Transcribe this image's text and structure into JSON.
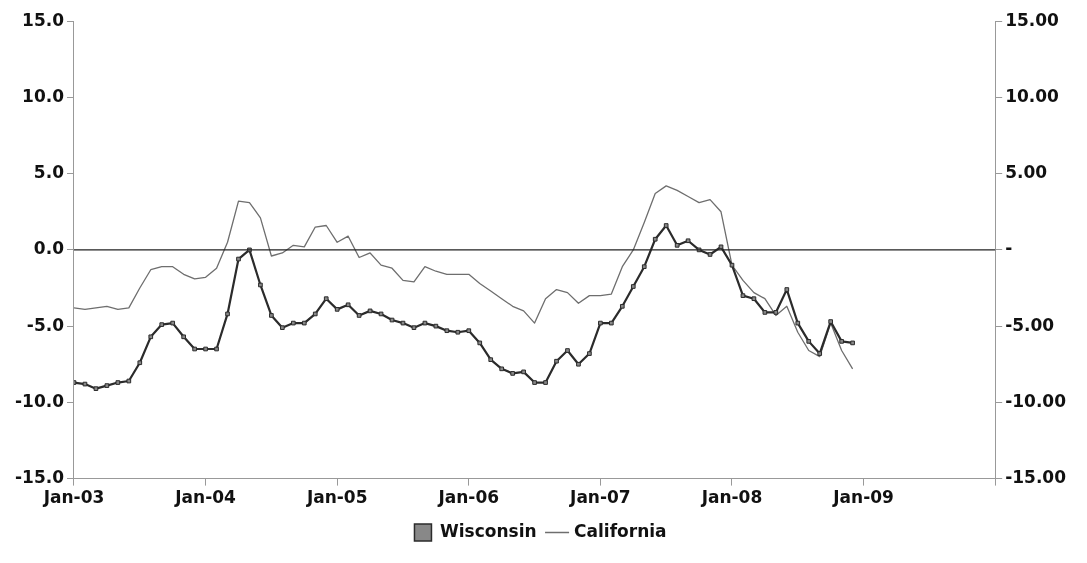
{
  "chart_data": {
    "type": "line",
    "x": [
      "2003-01",
      "2003-02",
      "2003-03",
      "2003-04",
      "2003-05",
      "2003-06",
      "2003-07",
      "2003-08",
      "2003-09",
      "2003-10",
      "2003-11",
      "2003-12",
      "2004-01",
      "2004-02",
      "2004-03",
      "2004-04",
      "2004-05",
      "2004-06",
      "2004-07",
      "2004-08",
      "2004-09",
      "2004-10",
      "2004-11",
      "2004-12",
      "2005-01",
      "2005-02",
      "2005-03",
      "2005-04",
      "2005-05",
      "2005-06",
      "2005-07",
      "2005-08",
      "2005-09",
      "2005-10",
      "2005-11",
      "2005-12",
      "2006-01",
      "2006-02",
      "2006-03",
      "2006-04",
      "2006-05",
      "2006-06",
      "2006-07",
      "2006-08",
      "2006-09",
      "2006-10",
      "2006-11",
      "2006-12",
      "2007-01",
      "2007-02",
      "2007-03",
      "2007-04",
      "2007-05",
      "2007-06",
      "2007-07",
      "2007-08",
      "2007-09",
      "2007-10",
      "2007-11",
      "2007-12",
      "2008-01",
      "2008-02",
      "2008-03",
      "2008-04",
      "2008-05",
      "2008-06",
      "2008-07",
      "2008-08",
      "2008-09",
      "2008-10",
      "2008-11",
      "2008-12"
    ],
    "series": [
      {
        "name": "Wisconsin",
        "color": "#2b2b2b",
        "marker": "square",
        "values": [
          -8.7,
          -8.8,
          -9.1,
          -8.9,
          -8.7,
          -8.6,
          -7.4,
          -5.7,
          -4.9,
          -4.8,
          -5.7,
          -6.5,
          -6.5,
          -6.5,
          -4.2,
          -0.6,
          0.0,
          -2.3,
          -4.3,
          -5.1,
          -4.8,
          -4.8,
          -4.2,
          -3.2,
          -3.9,
          -3.6,
          -4.3,
          -4.0,
          -4.2,
          -4.6,
          -4.8,
          -5.1,
          -4.8,
          -5.0,
          -5.3,
          -5.4,
          -5.3,
          -6.1,
          -7.2,
          -7.8,
          -8.1,
          -8.0,
          -8.7,
          -8.7,
          -7.3,
          -6.6,
          -7.5,
          -6.8,
          -4.8,
          -4.8,
          -3.7,
          -2.4,
          -1.1,
          0.7,
          1.6,
          0.3,
          0.6,
          0.0,
          -0.3,
          0.2,
          -1.0,
          -3.0,
          -3.2,
          -4.1,
          -4.1,
          -2.6,
          -4.8,
          -6.0,
          -6.8,
          -4.7,
          -6.0,
          -6.1
        ]
      },
      {
        "name": "California",
        "color": "#6e6e6e",
        "marker": "none",
        "values": [
          -3.8,
          -3.9,
          -3.8,
          -3.7,
          -3.9,
          -3.8,
          -2.5,
          -1.3,
          -1.1,
          -1.1,
          -1.6,
          -1.9,
          -1.8,
          -1.2,
          0.5,
          3.2,
          3.1,
          2.1,
          -0.4,
          -0.2,
          0.3,
          0.2,
          1.5,
          1.6,
          0.5,
          0.9,
          -0.5,
          -0.2,
          -1.0,
          -1.2,
          -2.0,
          -2.1,
          -1.1,
          -1.4,
          -1.6,
          -1.6,
          -1.6,
          -2.2,
          -2.7,
          -3.2,
          -3.7,
          -4.0,
          -4.8,
          -3.2,
          -2.6,
          -2.8,
          -3.5,
          -3.0,
          -3.0,
          -2.9,
          -1.1,
          0.0,
          1.8,
          3.7,
          4.2,
          3.9,
          3.5,
          3.1,
          3.3,
          2.5,
          -1.0,
          -2.0,
          -2.8,
          -3.2,
          -4.3,
          -3.7,
          -5.4,
          -6.6,
          -7.0,
          -4.8,
          -6.6,
          -7.8
        ]
      }
    ],
    "xlim": [
      "2003-01",
      "2010-01"
    ],
    "xticks": [
      {
        "value": "2003-01",
        "label": "Jan-03"
      },
      {
        "value": "2004-01",
        "label": "Jan-04"
      },
      {
        "value": "2005-01",
        "label": "Jan-05"
      },
      {
        "value": "2006-01",
        "label": "Jan-06"
      },
      {
        "value": "2007-01",
        "label": "Jan-07"
      },
      {
        "value": "2008-01",
        "label": "Jan-08"
      },
      {
        "value": "2009-01",
        "label": "Jan-09"
      },
      {
        "value": "2010-01",
        "label": null
      }
    ],
    "ylim": [
      -15,
      15
    ],
    "yticks": [
      {
        "value": -15,
        "label": "-15.0"
      },
      {
        "value": -10,
        "label": "-10.0"
      },
      {
        "value": -5,
        "label": "-5.0"
      },
      {
        "value": 0,
        "label": "0.0"
      },
      {
        "value": 5,
        "label": "5.0"
      },
      {
        "value": 10,
        "label": "10.0"
      },
      {
        "value": 15,
        "label": "15.0"
      }
    ],
    "y2lim": [
      -15,
      15
    ],
    "y2ticks": [
      {
        "value": -15,
        "label": "-15.00"
      },
      {
        "value": -10,
        "label": "-10.00"
      },
      {
        "value": -5,
        "label": "-5.00"
      },
      {
        "value": 0,
        "label": "-"
      },
      {
        "value": 5,
        "label": "5.00"
      },
      {
        "value": 10,
        "label": "10.00"
      },
      {
        "value": 15,
        "label": "15.00"
      }
    ],
    "ref_lines": [
      {
        "axis": "y",
        "value": 0,
        "color": "#222222"
      }
    ],
    "grid": false,
    "legend": "bottom"
  }
}
